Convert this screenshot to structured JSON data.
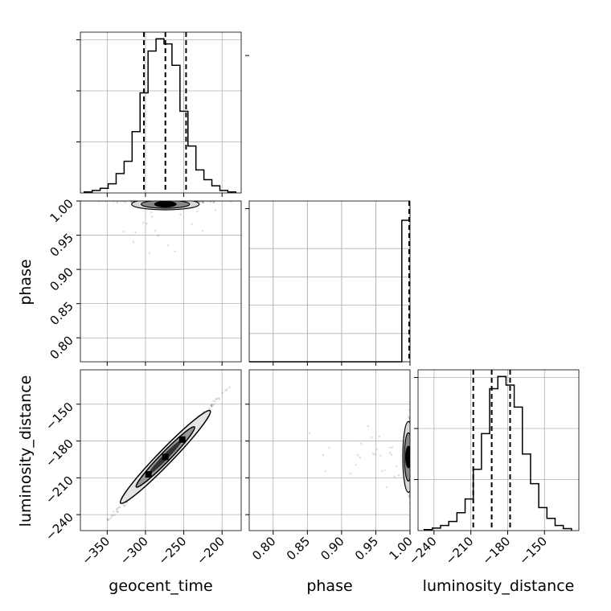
{
  "chart_data": {
    "type": "corner",
    "parameters": [
      {
        "name": "geocent_time",
        "label": "geocent_time",
        "range": [
          -385,
          -175
        ],
        "ticks": [
          -350,
          -300,
          -250,
          -200
        ],
        "tick_labels": [
          "−350",
          "−300",
          "−250",
          "−200"
        ]
      },
      {
        "name": "phase",
        "label": "phase",
        "range": [
          0.765,
          1.0
        ],
        "ticks": [
          0.8,
          0.85,
          0.9,
          0.95,
          1.0
        ],
        "tick_labels": [
          "0.80",
          "0.85",
          "0.90",
          "0.95",
          "1.00"
        ]
      },
      {
        "name": "luminosity_distance",
        "label": "luminosity_distance",
        "range": [
          -253,
          -122
        ],
        "ticks": [
          -240,
          -210,
          -180,
          -150
        ],
        "tick_labels": [
          "−240",
          "−210",
          "−180",
          "−150"
        ]
      }
    ],
    "histograms": [
      {
        "parameter": "geocent_time",
        "max_value": 3.0,
        "counts": [
          0.02,
          0.05,
          0.09,
          0.18,
          0.38,
          0.62,
          1.2,
          1.96,
          2.78,
          3.02,
          2.92,
          2.5,
          1.6,
          0.92,
          0.45,
          0.26,
          0.14,
          0.05,
          0.02
        ],
        "quantiles": [
          -302,
          -274,
          -247
        ]
      },
      {
        "parameter": "phase",
        "max_value": 1.0,
        "counts": [
          0,
          0,
          0,
          0,
          0,
          0,
          0,
          0,
          0,
          0,
          0,
          0,
          0,
          0,
          0,
          0,
          0,
          0,
          1.0
        ],
        "quantiles": [
          1.0
        ]
      },
      {
        "parameter": "luminosity_distance",
        "max_value": 3.0,
        "counts": [
          0.02,
          0.05,
          0.1,
          0.18,
          0.35,
          0.62,
          1.2,
          1.9,
          2.78,
          3.02,
          2.85,
          2.42,
          1.5,
          0.92,
          0.45,
          0.24,
          0.1,
          0.04
        ],
        "quantiles": [
          -208,
          -193,
          -178
        ]
      }
    ],
    "contours_2d": [
      {
        "x": "geocent_time",
        "y": "phase",
        "center": [
          -274,
          0.999
        ],
        "spread": [
          55,
          0.001
        ]
      },
      {
        "x": "geocent_time",
        "y": "luminosity_distance",
        "center": [
          -274,
          -193
        ],
        "correlation": 0.97
      },
      {
        "x": "phase",
        "y": "luminosity_distance",
        "center": [
          0.999,
          -193
        ],
        "spread": [
          0.001,
          15
        ]
      }
    ],
    "grid": true
  }
}
